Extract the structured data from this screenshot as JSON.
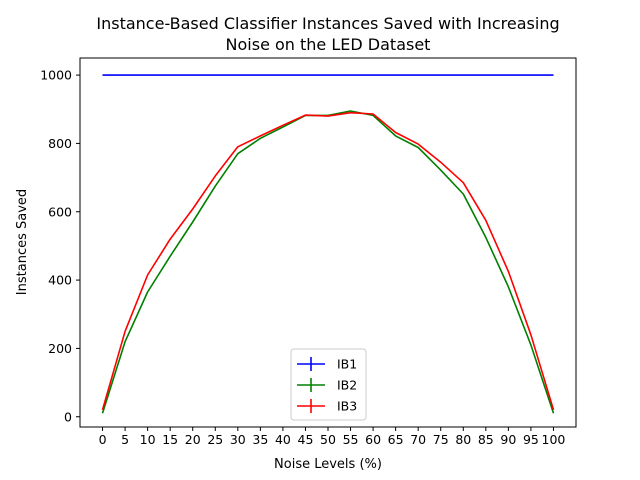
{
  "chart_data": {
    "type": "line",
    "title_line1": "Instance-Based Classifier Instances Saved with Increasing",
    "title_line2": "Noise on the LED Dataset",
    "xlabel": "Noise Levels (%)",
    "ylabel": "Instances Saved",
    "x": [
      0,
      5,
      10,
      15,
      20,
      25,
      30,
      35,
      40,
      45,
      50,
      55,
      60,
      65,
      70,
      75,
      80,
      85,
      90,
      95,
      100
    ],
    "xlim": [
      -5,
      105
    ],
    "ylim": [
      -30,
      1050
    ],
    "y_ticks": [
      0,
      200,
      400,
      600,
      800,
      1000
    ],
    "grid": false,
    "legend_position": "bottom-center",
    "series": [
      {
        "name": "IB1",
        "color": "#0000ff",
        "values": [
          1000,
          1000,
          1000,
          1000,
          1000,
          1000,
          1000,
          1000,
          1000,
          1000,
          1000,
          1000,
          1000,
          1000,
          1000,
          1000,
          1000,
          1000,
          1000,
          1000,
          1000
        ]
      },
      {
        "name": "IB2",
        "color": "#008000",
        "values": [
          10,
          220,
          365,
          470,
          570,
          675,
          770,
          815,
          848,
          882,
          882,
          895,
          882,
          822,
          788,
          722,
          652,
          525,
          380,
          210,
          10
        ]
      },
      {
        "name": "IB3",
        "color": "#ff0000",
        "values": [
          20,
          250,
          415,
          520,
          608,
          705,
          790,
          822,
          853,
          883,
          880,
          890,
          886,
          832,
          798,
          745,
          685,
          575,
          425,
          240,
          20
        ]
      }
    ]
  }
}
